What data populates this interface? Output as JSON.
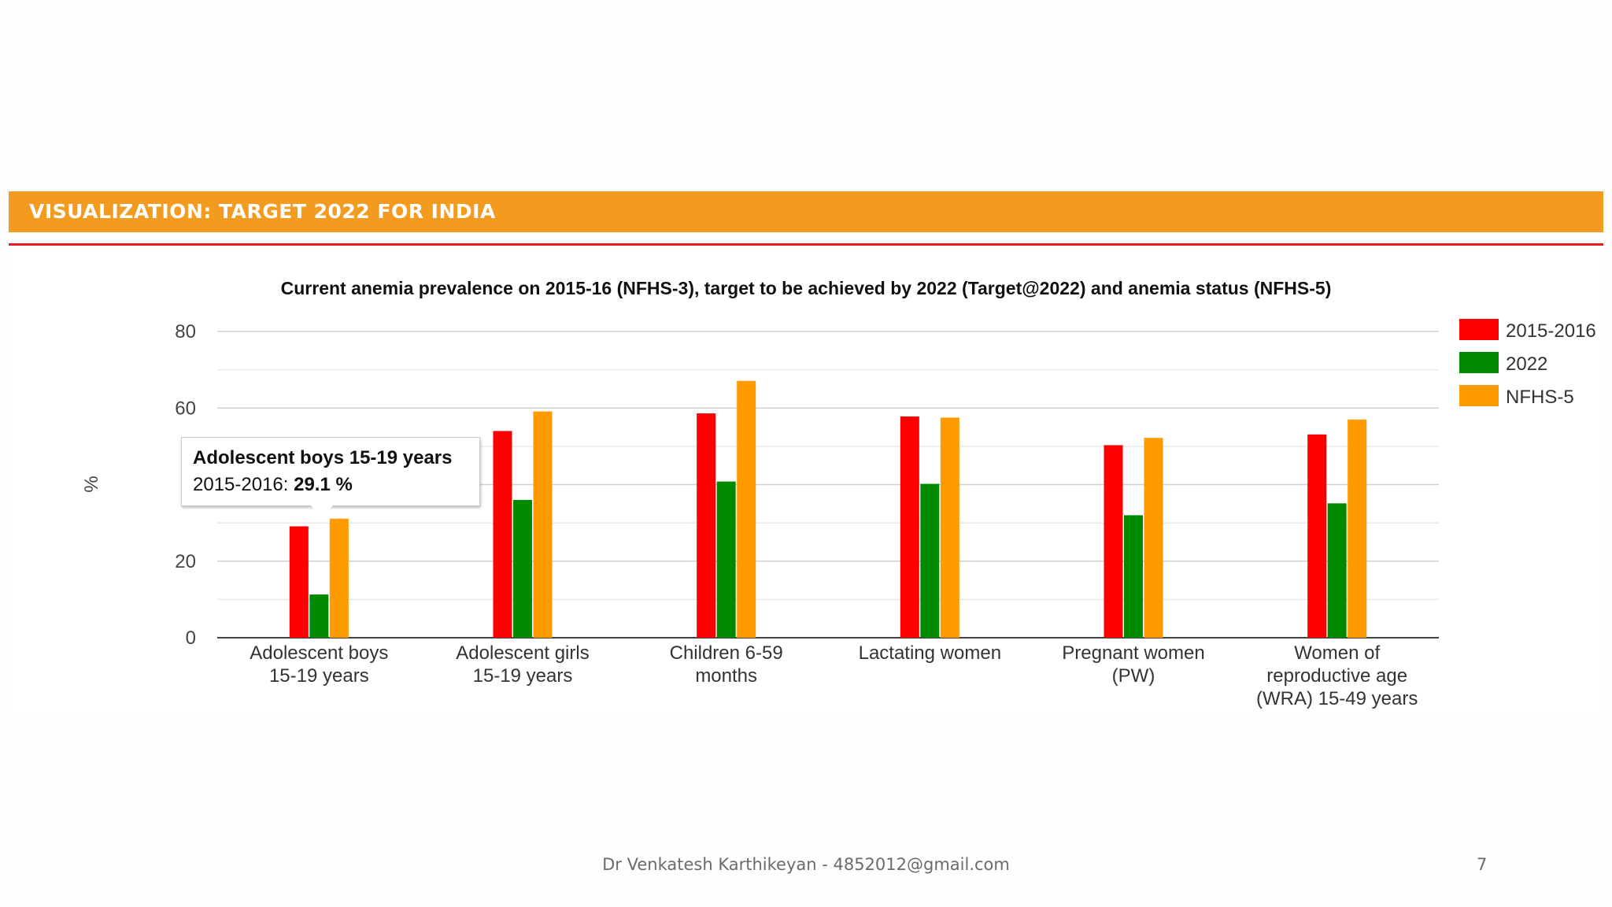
{
  "slide": {
    "banner": "VISUALIZATION: TARGET 2022 FOR INDIA",
    "footer": "Dr Venkatesh Karthikeyan - 4852012@gmail.com",
    "page_number": "7"
  },
  "colors": {
    "2015-2016": "#ff0000",
    "2022": "#008a00",
    "NFHS-5": "#ff9a00",
    "banner": "#f29b1f"
  },
  "tooltip": {
    "title": "Adolescent boys 15-19 years",
    "series_label": "2015-2016: ",
    "value": "29.1 %"
  },
  "chart_data": {
    "type": "bar",
    "title": "Current anemia prevalence on 2015-16 (NFHS-3), target to be achieved by 2022 (Target@2022) and anemia status (NFHS-5)",
    "ylabel": "%",
    "xlabel": "",
    "ylim": [
      0,
      80
    ],
    "yticks": [
      0,
      20,
      60,
      80
    ],
    "grid": true,
    "legend_position": "right",
    "categories": [
      [
        "Adolescent boys",
        "15-19 years"
      ],
      [
        "Adolescent girls",
        "15-19 years"
      ],
      [
        "Children 6-59",
        "months"
      ],
      [
        "Lactating women"
      ],
      [
        "Pregnant women",
        "(PW)"
      ],
      [
        "Women of",
        "reproductive age",
        "(WRA) 15-49 years"
      ]
    ],
    "series": [
      {
        "name": "2015-2016",
        "color": "#ff0000",
        "values": [
          29.1,
          54.0,
          58.6,
          57.8,
          50.3,
          53.1
        ]
      },
      {
        "name": "2022",
        "color": "#008a00",
        "values": [
          11.3,
          36.0,
          40.8,
          40.2,
          32.0,
          35.1
        ]
      },
      {
        "name": "NFHS-5",
        "color": "#ff9a00",
        "values": [
          31.1,
          59.1,
          67.1,
          57.5,
          52.2,
          57.0
        ]
      }
    ]
  }
}
